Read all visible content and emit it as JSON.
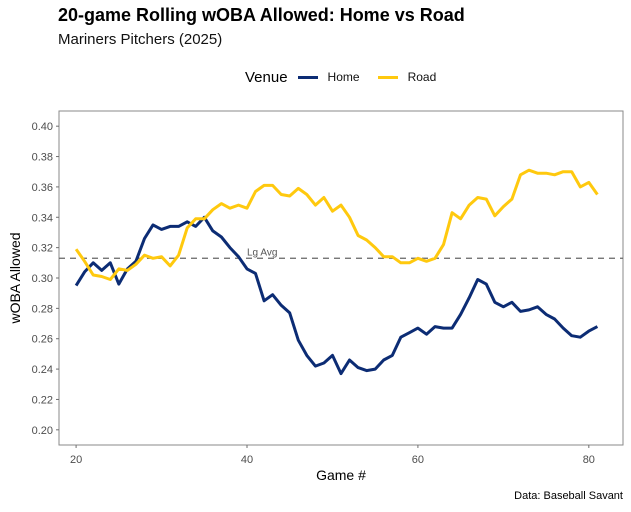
{
  "chart_data": {
    "type": "line",
    "title": "20-game Rolling wOBA Allowed: Home vs Road",
    "subtitle": "Mariners Pitchers (2025)",
    "caption": "Data: Baseball Savant",
    "xlabel": "Game #",
    "ylabel": "wOBA Allowed",
    "xlim": [
      18,
      84
    ],
    "ylim": [
      0.19,
      0.41
    ],
    "xticks": [
      20,
      40,
      60,
      80
    ],
    "xtick_labels": [
      "20",
      "40",
      "60",
      "80"
    ],
    "yticks": [
      0.2,
      0.22,
      0.24,
      0.26,
      0.28,
      0.3,
      0.32,
      0.34,
      0.36,
      0.38,
      0.4
    ],
    "ytick_labels": [
      "0.20",
      "0.22",
      "0.24",
      "0.26",
      "0.28",
      "0.30",
      "0.32",
      "0.34",
      "0.36",
      "0.38",
      "0.40"
    ],
    "grid": false,
    "legend": {
      "title": "Venue",
      "position": "top"
    },
    "reference_line": {
      "value": 0.313,
      "label": "Lg Avg",
      "style": "dashed",
      "color": "#666666"
    },
    "x": [
      20,
      21,
      22,
      23,
      24,
      25,
      26,
      27,
      28,
      29,
      30,
      31,
      32,
      33,
      34,
      35,
      36,
      37,
      38,
      39,
      40,
      41,
      42,
      43,
      44,
      45,
      46,
      47,
      48,
      49,
      50,
      51,
      52,
      53,
      54,
      55,
      56,
      57,
      58,
      59,
      60,
      61,
      62,
      63,
      64,
      65,
      66,
      67,
      68,
      69,
      70,
      71,
      72,
      73,
      74,
      75,
      76,
      77,
      78,
      79,
      80,
      81
    ],
    "series": [
      {
        "name": "Home",
        "color": "#0C2C74",
        "values": [
          0.295,
          0.304,
          0.31,
          0.305,
          0.31,
          0.296,
          0.306,
          0.311,
          0.326,
          0.335,
          0.332,
          0.334,
          0.334,
          0.337,
          0.334,
          0.34,
          0.331,
          0.327,
          0.32,
          0.314,
          0.306,
          0.303,
          0.285,
          0.289,
          0.282,
          0.277,
          0.259,
          0.249,
          0.242,
          0.244,
          0.249,
          0.237,
          0.246,
          0.241,
          0.239,
          0.24,
          0.246,
          0.249,
          0.261,
          0.264,
          0.267,
          0.263,
          0.268,
          0.267,
          0.267,
          0.276,
          0.287,
          0.299,
          0.296,
          0.284,
          0.281,
          0.284,
          0.278,
          0.279,
          0.281,
          0.276,
          0.273,
          0.267,
          0.262,
          0.261,
          0.265,
          0.268
        ]
      },
      {
        "name": "Road",
        "color": "#FFC90E",
        "values": [
          0.319,
          0.311,
          0.302,
          0.301,
          0.299,
          0.306,
          0.305,
          0.309,
          0.315,
          0.313,
          0.314,
          0.308,
          0.315,
          0.333,
          0.339,
          0.339,
          0.345,
          0.349,
          0.346,
          0.348,
          0.346,
          0.357,
          0.361,
          0.361,
          0.355,
          0.354,
          0.359,
          0.355,
          0.348,
          0.353,
          0.344,
          0.348,
          0.34,
          0.328,
          0.325,
          0.32,
          0.314,
          0.314,
          0.31,
          0.31,
          0.313,
          0.311,
          0.313,
          0.322,
          0.343,
          0.339,
          0.348,
          0.353,
          0.352,
          0.341,
          0.347,
          0.352,
          0.368,
          0.371,
          0.369,
          0.369,
          0.368,
          0.37,
          0.37,
          0.36,
          0.363,
          0.355
        ]
      }
    ]
  }
}
